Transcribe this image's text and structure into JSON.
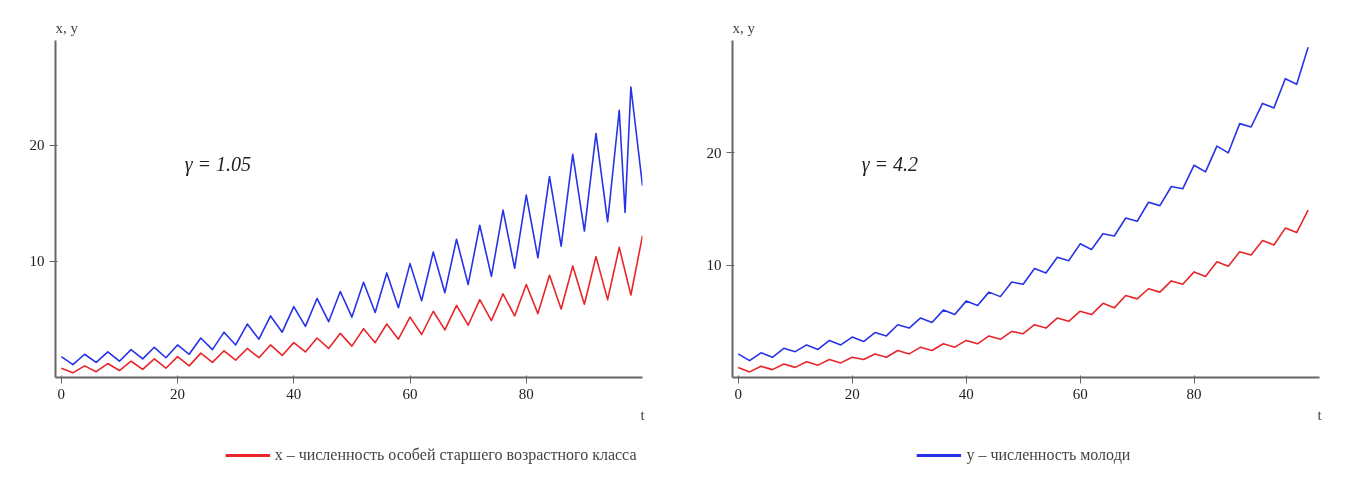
{
  "chart_data": [
    {
      "type": "line",
      "xlabel": "t",
      "ylabel": "x, y",
      "annotations": [
        "γ = 1.05"
      ],
      "xlim": [
        -1,
        100
      ],
      "ylim": [
        0,
        29
      ],
      "xticks": [
        0,
        20,
        40,
        60,
        80
      ],
      "yticks": [
        10,
        20
      ],
      "grid": false,
      "legend": "bottom",
      "x": [
        0,
        2,
        4,
        6,
        8,
        10,
        12,
        14,
        16,
        18,
        20,
        22,
        24,
        26,
        28,
        30,
        32,
        34,
        36,
        38,
        40,
        42,
        44,
        46,
        48,
        50,
        52,
        54,
        56,
        58,
        60,
        62,
        64,
        66,
        68,
        70,
        72,
        74,
        76,
        78,
        80,
        82,
        84,
        86,
        88,
        90,
        92,
        94,
        96,
        98,
        100
      ],
      "series": [
        {
          "name": "x – численность особей старшего возрастного класса",
          "color": "#e8262a",
          "values": [
            0.8,
            0.4,
            1.0,
            0.5,
            1.2,
            0.6,
            1.4,
            0.7,
            1.6,
            0.8,
            1.8,
            1.0,
            2.1,
            1.3,
            2.3,
            1.5,
            2.5,
            1.7,
            2.8,
            1.9,
            3.0,
            2.2,
            3.4,
            2.5,
            3.8,
            2.7,
            4.2,
            3.0,
            4.6,
            3.3,
            5.2,
            3.7,
            5.7,
            4.1,
            6.2,
            4.5,
            6.7,
            4.9,
            7.2,
            5.3,
            8.0,
            5.5,
            8.8,
            5.9,
            9.6,
            6.3,
            10.4,
            6.7,
            11.2,
            7.1,
            12.2
          ]
        },
        {
          "name": "y – численность молоди",
          "color": "#2633e8",
          "x": [
            0,
            2,
            4,
            6,
            8,
            10,
            12,
            14,
            16,
            18,
            20,
            22,
            24,
            26,
            28,
            30,
            32,
            34,
            36,
            38,
            40,
            42,
            44,
            46,
            48,
            50,
            52,
            54,
            56,
            58,
            60,
            62,
            64,
            66,
            68,
            70,
            72,
            74,
            76,
            78,
            80,
            82,
            84,
            86,
            88,
            90,
            92,
            94,
            96,
            97,
            98,
            100
          ],
          "values": [
            1.8,
            1.1,
            2.0,
            1.3,
            2.2,
            1.4,
            2.4,
            1.6,
            2.6,
            1.7,
            2.8,
            2.0,
            3.4,
            2.4,
            3.9,
            2.8,
            4.6,
            3.3,
            5.3,
            3.9,
            6.1,
            4.4,
            6.8,
            4.8,
            7.4,
            5.2,
            8.2,
            5.6,
            9.0,
            6.0,
            9.8,
            6.6,
            10.8,
            7.3,
            11.9,
            8.0,
            13.1,
            8.7,
            14.4,
            9.4,
            15.7,
            10.3,
            17.3,
            11.3,
            19.2,
            12.6,
            21.0,
            13.4,
            23.0,
            14.2,
            25.0,
            16.5
          ]
        }
      ]
    },
    {
      "type": "line",
      "xlabel": "t",
      "ylabel": "x, y",
      "annotations": [
        "γ = 4.2"
      ],
      "xlim": [
        -1,
        102
      ],
      "ylim": [
        0,
        30
      ],
      "xticks": [
        0,
        20,
        40,
        60,
        80
      ],
      "yticks": [
        10,
        20
      ],
      "grid": false,
      "x": [
        0,
        2,
        4,
        6,
        8,
        10,
        12,
        14,
        16,
        18,
        20,
        22,
        24,
        26,
        28,
        30,
        32,
        34,
        36,
        38,
        40,
        42,
        44,
        46,
        48,
        50,
        52,
        54,
        56,
        58,
        60,
        62,
        64,
        66,
        68,
        70,
        72,
        74,
        76,
        78,
        80,
        82,
        84,
        86,
        88,
        90,
        92,
        94,
        96,
        98,
        100
      ],
      "series": [
        {
          "color": "#e8262a",
          "values": [
            0.9,
            0.5,
            1.0,
            0.7,
            1.2,
            0.9,
            1.4,
            1.1,
            1.6,
            1.3,
            1.8,
            1.6,
            2.1,
            1.8,
            2.4,
            2.1,
            2.7,
            2.4,
            3.0,
            2.7,
            3.3,
            3.0,
            3.7,
            3.4,
            4.1,
            3.9,
            4.7,
            4.4,
            5.3,
            5.0,
            5.9,
            5.6,
            6.6,
            6.2,
            7.3,
            7.0,
            7.9,
            7.6,
            8.6,
            8.3,
            9.4,
            9.0,
            10.3,
            9.9,
            11.2,
            10.9,
            12.2,
            11.8,
            13.3,
            12.9,
            14.9
          ]
        },
        {
          "color": "#2633e8",
          "values": [
            2.1,
            1.5,
            2.2,
            1.8,
            2.6,
            2.3,
            2.9,
            2.5,
            3.3,
            2.9,
            3.6,
            3.2,
            4.0,
            3.7,
            4.7,
            4.4,
            5.3,
            4.9,
            6.0,
            5.6,
            6.8,
            6.4,
            7.6,
            7.2,
            8.5,
            8.3,
            9.7,
            9.3,
            10.7,
            10.4,
            11.9,
            11.4,
            12.8,
            12.6,
            14.2,
            13.9,
            15.6,
            15.3,
            17.0,
            16.8,
            18.9,
            18.3,
            20.6,
            20.0,
            22.6,
            22.3,
            24.4,
            24.0,
            26.6,
            26.1,
            29.4
          ]
        }
      ]
    }
  ]
}
